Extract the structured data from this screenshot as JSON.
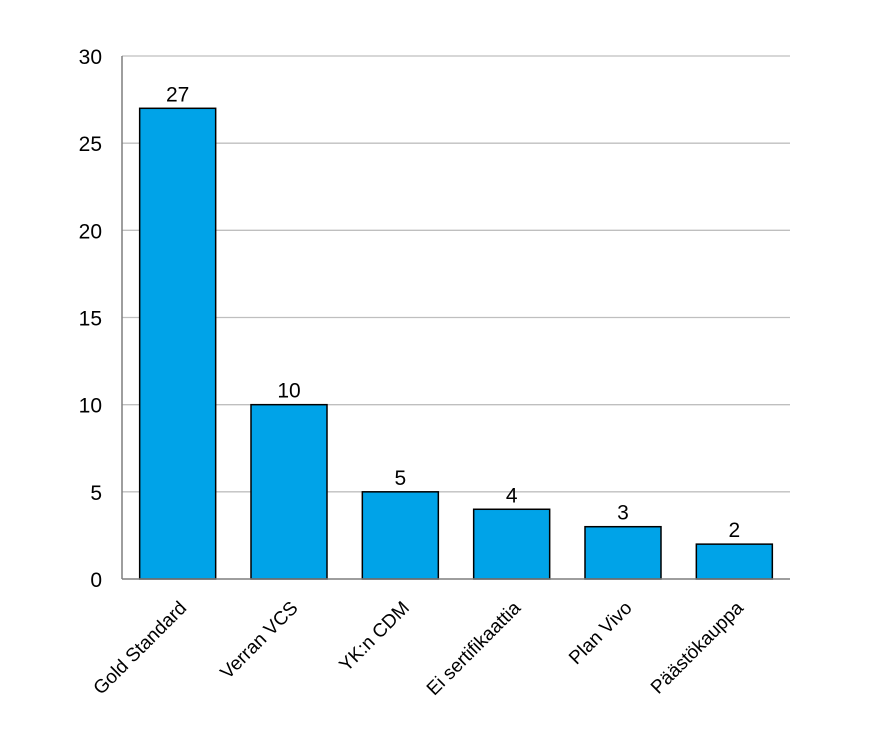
{
  "chart_data": {
    "type": "bar",
    "title": "",
    "xlabel": "",
    "ylabel": "",
    "categories": [
      "Gold Standard",
      "Verran VCS",
      "YK:n CDM",
      "Ei sertifikaattia",
      "Plan Vivo",
      "Päästökauppa"
    ],
    "values": [
      27,
      10,
      5,
      4,
      3,
      2
    ],
    "ylim": [
      0,
      30
    ],
    "yticks": [
      0,
      5,
      10,
      15,
      20,
      25,
      30
    ],
    "grid": true,
    "legend": "none",
    "bar_color": "#00a3e8",
    "bar_outline_color": "#000000",
    "grid_color": "#bfbfbf",
    "axis_color": "#7f7f7f",
    "text_color": "#000000"
  }
}
